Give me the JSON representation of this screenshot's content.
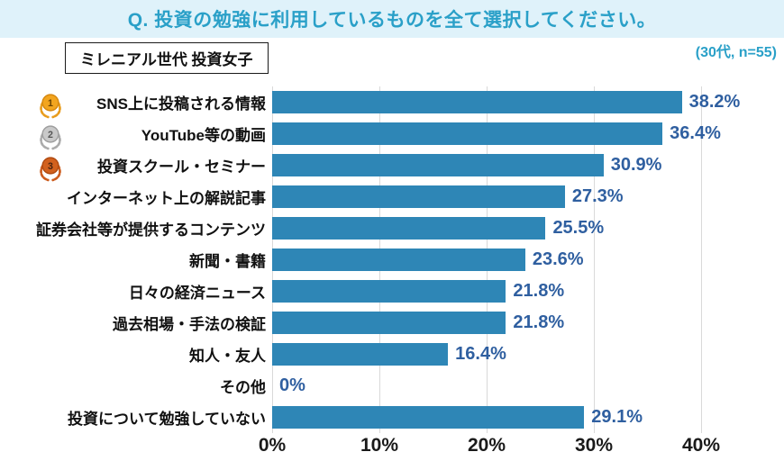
{
  "header": {
    "question": "Q. 投資の勉強に利用しているものを全て選択してください。"
  },
  "subheader": {
    "group_label": "ミレニアル世代 投資女子",
    "sample_note": "(30代, n=55)"
  },
  "colors": {
    "band_bg": "#DFF2FA",
    "title_text": "#2AA0C8",
    "bar": "#2E86B6",
    "value_label": "#2F5FA0",
    "grid": "#D9D9D9",
    "axis_text": "#1A1A1A",
    "gold_medal": "#F2A51F",
    "silver_medal": "#C9C9C9",
    "bronze_medal": "#D2611E"
  },
  "chart_data": {
    "type": "bar",
    "orientation": "horizontal",
    "title": "Q. 投資の勉強に利用しているものを全て選択してください。",
    "group": "ミレニアル世代 投資女子",
    "sample": "(30代, n=55)",
    "categories": [
      "SNS上に投稿される情報",
      "YouTube等の動画",
      "投資スクール・セミナー",
      "インターネット上の解説記事",
      "証券会社等が提供するコンテンツ",
      "新聞・書籍",
      "日々の経済ニュース",
      "過去相場・手法の検証",
      "知人・友人",
      "その他",
      "投資について勉強していない"
    ],
    "values": [
      38.2,
      36.4,
      30.9,
      27.3,
      25.5,
      23.6,
      21.8,
      21.8,
      16.4,
      0,
      29.1
    ],
    "value_labels": [
      "38.2%",
      "36.4%",
      "30.9%",
      "27.3%",
      "25.5%",
      "23.6%",
      "21.8%",
      "21.8%",
      "16.4%",
      "0%",
      "29.1%"
    ],
    "rank_badges": [
      {
        "rank": "1",
        "medal": "gold-medal-icon"
      },
      {
        "rank": "2",
        "medal": "silver-medal-icon"
      },
      {
        "rank": "3",
        "medal": "bronze-medal-icon"
      }
    ],
    "x_ticks": [
      "0%",
      "10%",
      "20%",
      "30%",
      "40%"
    ],
    "xlabel": "",
    "ylabel": "",
    "xlim": [
      0,
      40
    ],
    "grid": true,
    "legend": false
  }
}
